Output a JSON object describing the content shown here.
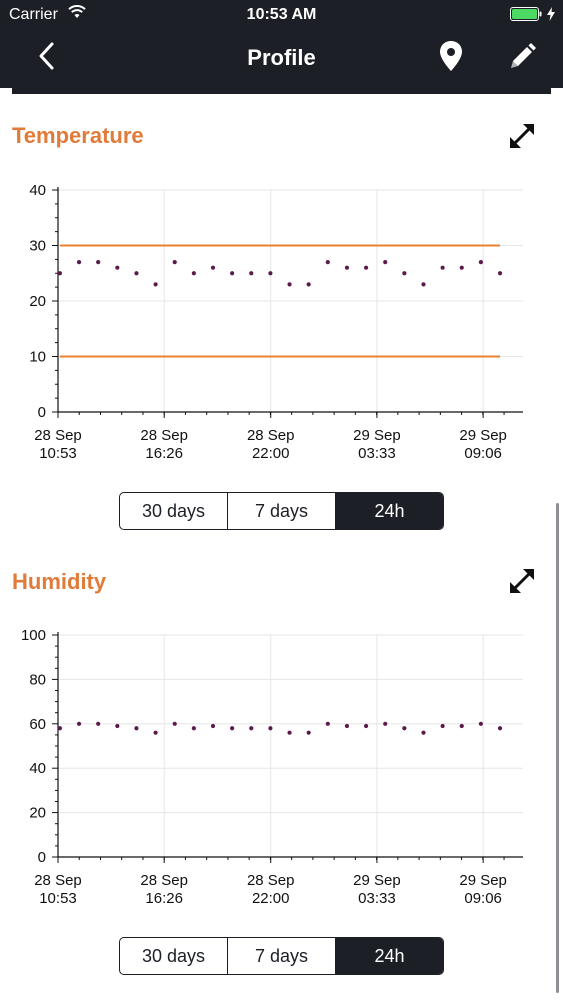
{
  "status_bar": {
    "carrier": "Carrier",
    "time": "10:53 AM"
  },
  "nav": {
    "title": "Profile"
  },
  "temperature": {
    "title": "Temperature",
    "range_buttons": [
      "30 days",
      "7 days",
      "24h"
    ],
    "selected_range": "24h"
  },
  "humidity": {
    "title": "Humidity",
    "range_buttons": [
      "30 days",
      "7 days",
      "24h"
    ],
    "selected_range": "24h"
  },
  "colors": {
    "accent": "#e07b39",
    "bar": "#1c1f26",
    "points": "#5a1a4a",
    "threshold": "#e8812f"
  },
  "chart_data": [
    {
      "type": "scatter",
      "title": "Temperature",
      "x_tick_labels": [
        [
          "28 Sep",
          "10:53"
        ],
        [
          "28 Sep",
          "16:26"
        ],
        [
          "28 Sep",
          "22:00"
        ],
        [
          "29 Sep",
          "03:33"
        ],
        [
          "29 Sep",
          "09:06"
        ]
      ],
      "x_ticks_hours": [
        0,
        5.55,
        11.117,
        16.667,
        22.217
      ],
      "y_ticks": [
        0,
        10,
        20,
        30,
        40
      ],
      "ylim": [
        0,
        40
      ],
      "xlim_hours": [
        0,
        24.3
      ],
      "threshold_lines": [
        30,
        10
      ],
      "series": [
        {
          "x_hours": [
            0.1,
            1.1,
            2.1,
            3.1,
            4.1,
            5.1,
            6.1,
            7.1,
            8.1,
            9.1,
            10.1,
            11.1,
            12.1,
            13.1,
            14.1,
            15.1,
            16.1,
            17.1,
            18.1,
            19.1,
            20.1,
            21.1,
            22.1,
            23.1
          ],
          "values": [
            25,
            27,
            27,
            26,
            25,
            23,
            27,
            25,
            26,
            25,
            25,
            25,
            23,
            23,
            27,
            26,
            26,
            27,
            25,
            23,
            26,
            26,
            27,
            25
          ]
        }
      ],
      "grid": true
    },
    {
      "type": "scatter",
      "title": "Humidity",
      "x_tick_labels": [
        [
          "28 Sep",
          "10:53"
        ],
        [
          "28 Sep",
          "16:26"
        ],
        [
          "28 Sep",
          "22:00"
        ],
        [
          "29 Sep",
          "03:33"
        ],
        [
          "29 Sep",
          "09:06"
        ]
      ],
      "x_ticks_hours": [
        0,
        5.55,
        11.117,
        16.667,
        22.217
      ],
      "y_ticks": [
        0,
        20,
        40,
        60,
        80,
        100
      ],
      "ylim": [
        0,
        100
      ],
      "xlim_hours": [
        0,
        24.3
      ],
      "threshold_lines": [],
      "series": [
        {
          "x_hours": [
            0.1,
            1.1,
            2.1,
            3.1,
            4.1,
            5.1,
            6.1,
            7.1,
            8.1,
            9.1,
            10.1,
            11.1,
            12.1,
            13.1,
            14.1,
            15.1,
            16.1,
            17.1,
            18.1,
            19.1,
            20.1,
            21.1,
            22.1,
            23.1
          ],
          "values": [
            58,
            60,
            60,
            59,
            58,
            56,
            60,
            58,
            59,
            58,
            58,
            58,
            56,
            56,
            60,
            59,
            59,
            60,
            58,
            56,
            59,
            59,
            60,
            58
          ]
        }
      ],
      "grid": true
    }
  ]
}
